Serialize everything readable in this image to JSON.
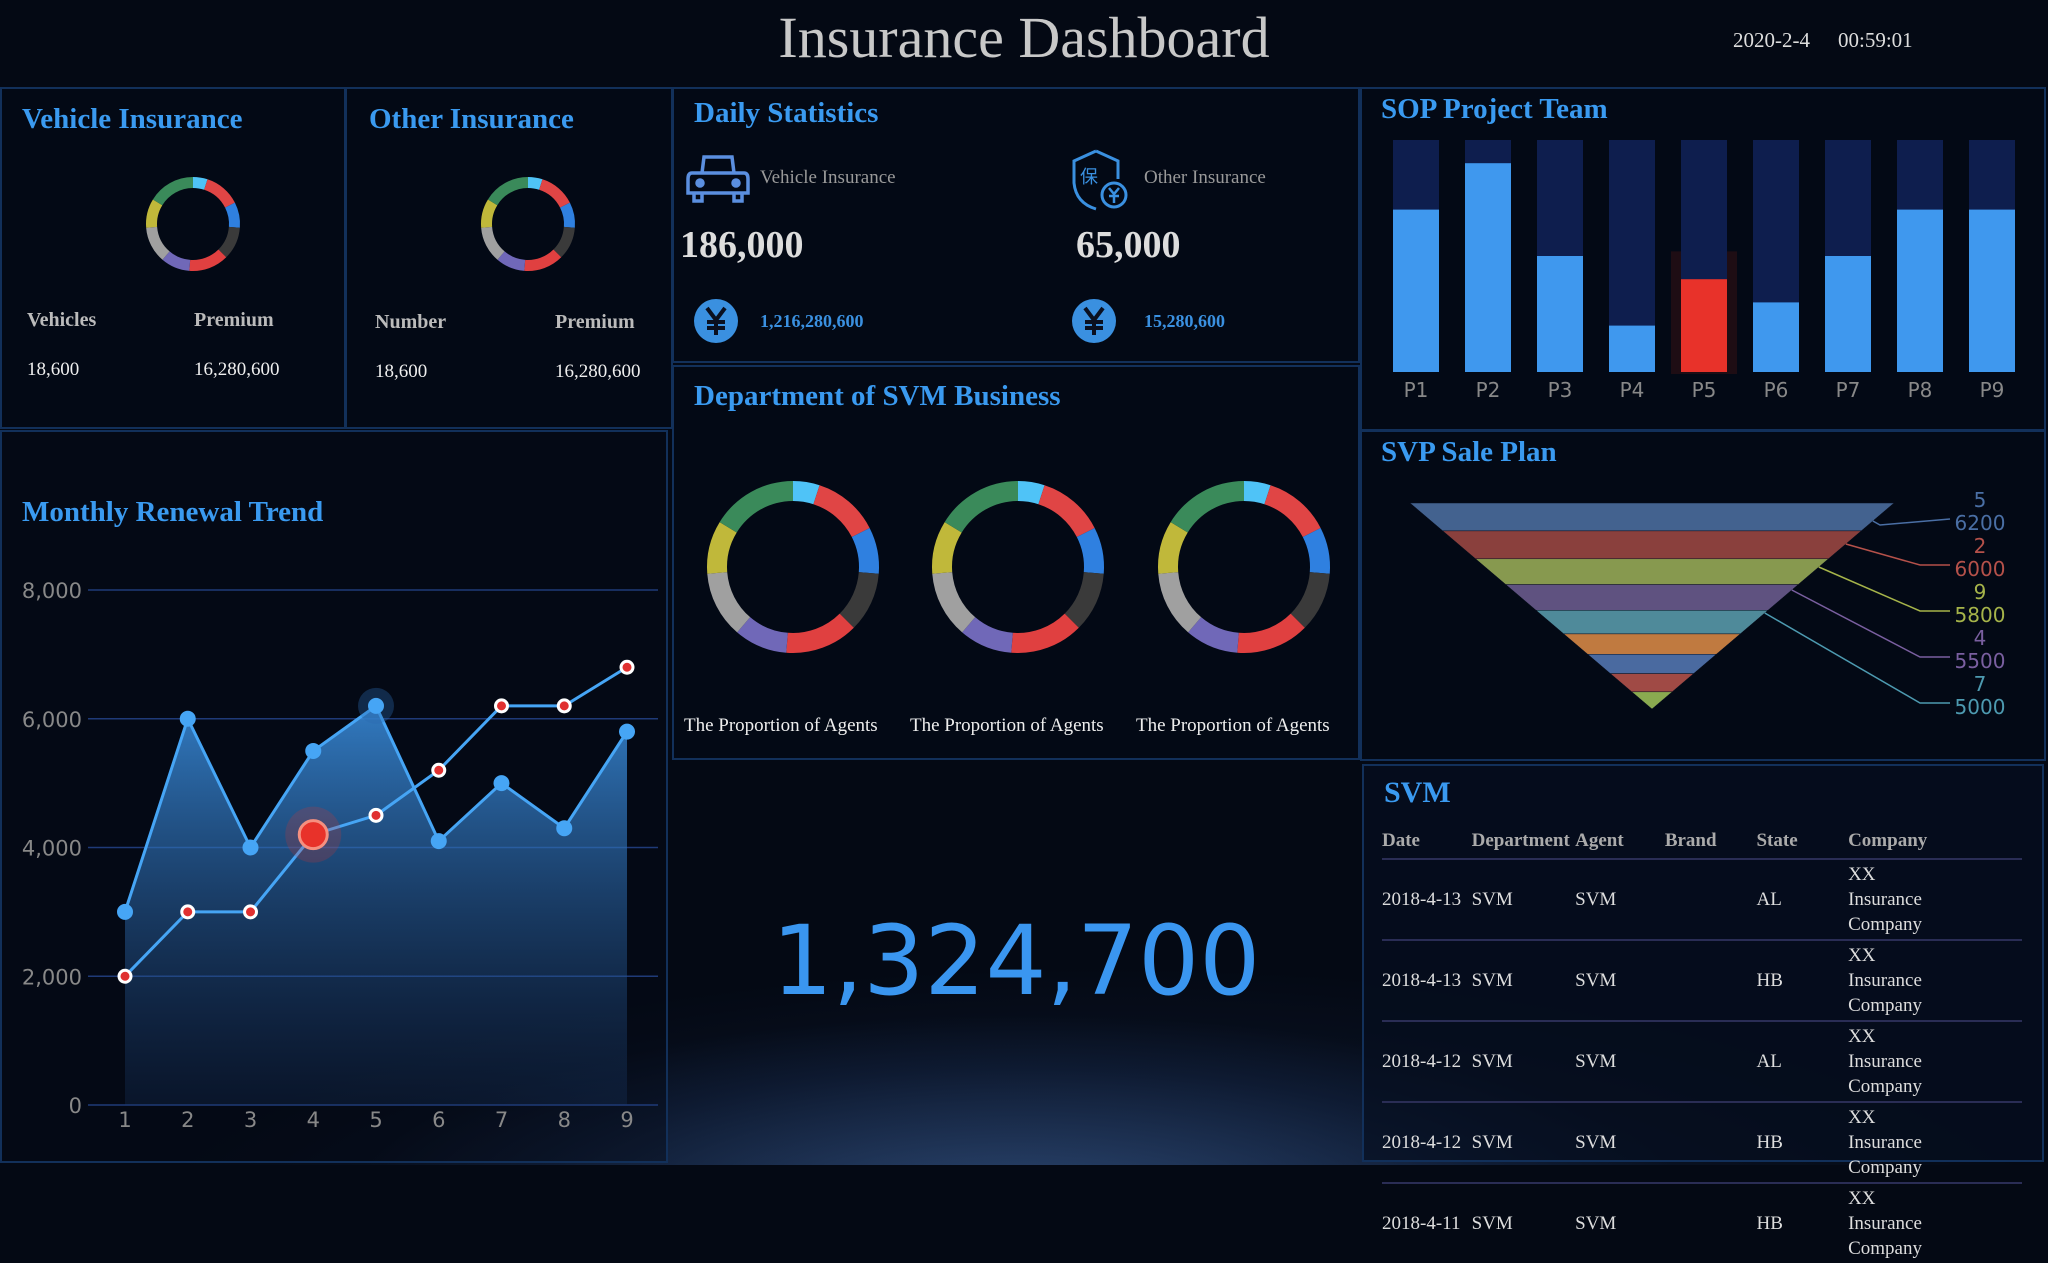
{
  "header": {
    "title": "Insurance Dashboard",
    "date": "2020-2-4",
    "time": "00:59:01"
  },
  "colors": {
    "accent": "#3a9af0",
    "highlight": "#e8322a",
    "donut": [
      "#4fc3f7",
      "#e04545",
      "#2f80e0",
      "#3a3a3a",
      "#e04040",
      "#7068b8",
      "#a0a0a0",
      "#c0b83a",
      "#3a8a5a"
    ]
  },
  "vehicle": {
    "title": "Vehicle Insurance",
    "col1": "Vehicles",
    "col2": "Premium",
    "val1": "18,600",
    "val2": "16,280,600"
  },
  "other": {
    "title": "Other Insurance",
    "col1": "Number",
    "col2": "Premium",
    "val1": "18,600",
    "val2": "16,280,600"
  },
  "daily": {
    "title": "Daily Statistics",
    "vehicle": {
      "label": "Vehicle Insurance",
      "count": "186,000",
      "amount": "1,216,280,600",
      "icon": "car-icon"
    },
    "other": {
      "label": "Other Insurance",
      "count": "65,000",
      "amount": "15,280,600",
      "icon": "shield-yuan-icon"
    },
    "currency_icon": "yuan-icon"
  },
  "department": {
    "title": "Department of SVM Business",
    "donut_labels": [
      "The Proportion of Agents",
      "The Proportion of Agents",
      "The Proportion of Agents"
    ]
  },
  "donut_segments": [
    20,
    50,
    35,
    45,
    55,
    40,
    50,
    40,
    65
  ],
  "total": "1,324,700",
  "chart_data": [
    {
      "type": "area",
      "title": "Monthly Renewal Trend",
      "x": [
        1,
        2,
        3,
        4,
        5,
        6,
        7,
        8,
        9
      ],
      "ylim": [
        0,
        8000
      ],
      "yticks": [
        "0",
        "2,000",
        "4,000",
        "6,000",
        "8,000"
      ],
      "grid": true,
      "series": [
        {
          "values": [
            3000,
            6000,
            4000,
            5500,
            6200,
            4100,
            5000,
            4300,
            5800
          ]
        },
        {
          "values": [
            2000,
            3000,
            3000,
            4200,
            4500,
            5200,
            6200,
            6200,
            6800
          ]
        }
      ],
      "highlight_index": 3
    },
    {
      "type": "bar",
      "title": "SOP Project Team",
      "categories": [
        "P1",
        "P2",
        "P3",
        "P4",
        "P5",
        "P6",
        "P7",
        "P8",
        "P9"
      ],
      "values": [
        70,
        90,
        50,
        20,
        40,
        30,
        50,
        70,
        70
      ],
      "ylim": [
        0,
        100
      ],
      "highlight": "P5"
    },
    {
      "type": "funnel",
      "title": "SVP Sale Plan",
      "layers": 9,
      "labels": [
        {
          "name": "5",
          "value": "6200",
          "color": "#4a6fa5"
        },
        {
          "name": "2",
          "value": "6000",
          "color": "#b5514a"
        },
        {
          "name": "9",
          "value": "5800",
          "color": "#a6b44a"
        },
        {
          "name": "4",
          "value": "5500",
          "color": "#7a5fa0"
        },
        {
          "name": "7",
          "value": "5000",
          "color": "#4d9ab0"
        }
      ],
      "layer_colors": [
        "#43628f",
        "#8a403d",
        "#87994f",
        "#5f5280",
        "#4f8a9a",
        "#c07a40",
        "#4a6aa0",
        "#a04a45",
        "#8aaa50"
      ]
    }
  ],
  "svm": {
    "title": "SVM",
    "headers": [
      "Date",
      "Department",
      "Agent",
      "Brand",
      "State",
      "Company"
    ],
    "rows": [
      [
        "2018-4-13",
        "SVM",
        "SVM",
        "",
        "AL",
        "XX Insurance Company"
      ],
      [
        "2018-4-13",
        "SVM",
        "SVM",
        "",
        "HB",
        "XX Insurance Company"
      ],
      [
        "2018-4-12",
        "SVM",
        "SVM",
        "",
        "AL",
        "XX Insurance Company"
      ],
      [
        "2018-4-12",
        "SVM",
        "SVM",
        "",
        "HB",
        "XX Insurance Company"
      ],
      [
        "2018-4-11",
        "SVM",
        "SVM",
        "",
        "HB",
        "XX Insurance Company"
      ]
    ]
  }
}
